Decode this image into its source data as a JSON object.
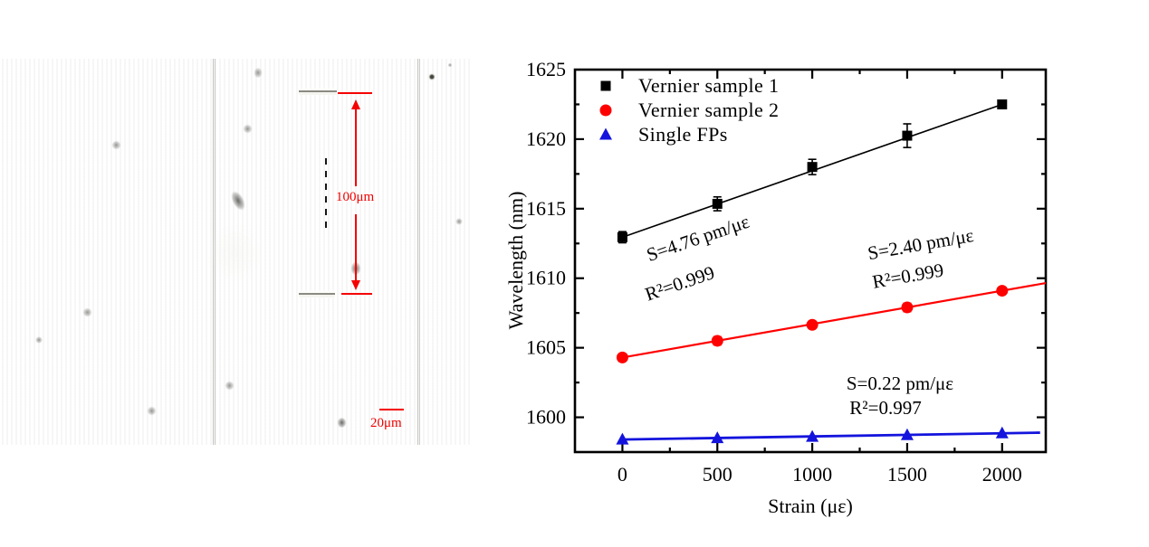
{
  "figure": {
    "background": "#ffffff",
    "description": "microscope image of inscribed fiber Fabry-Perot cavity (left) and strain response chart (right)"
  },
  "microscope": {
    "cavity_length_label": "100μm",
    "scale_bar_label": "20μm",
    "annotation_color": "#ff0000"
  },
  "chart_data": {
    "type": "scatter",
    "title": "",
    "xlabel": "Strain (με)",
    "ylabel": "Wavelength (nm)",
    "xlim": [
      -250,
      2230
    ],
    "ylim": [
      1597.5,
      1625
    ],
    "x_major_ticks": [
      0,
      500,
      1000,
      1500,
      2000
    ],
    "x_minor_step": 250,
    "y_major_ticks": [
      1600,
      1605,
      1610,
      1615,
      1620,
      1625
    ],
    "y_minor_step": 2.5,
    "grid": false,
    "legend_position": "top-left",
    "x": [
      0,
      500,
      1000,
      1500,
      2000
    ],
    "series": [
      {
        "name": "Vernier sample 1",
        "marker": "square",
        "color": "#000000",
        "line_width": 1.6,
        "values": [
          1612.95,
          1615.35,
          1618.0,
          1620.25,
          1622.5
        ],
        "errors": [
          0.4,
          0.5,
          0.55,
          0.85,
          0.15
        ],
        "fit_range": [
          0,
          2000
        ],
        "slope_label": "S=4.76 pm/με",
        "r2_label": "R²=0.999",
        "annotation_rotation_deg": -19
      },
      {
        "name": "Vernier sample 2",
        "marker": "circle",
        "color": "#ff0000",
        "line_width": 2.2,
        "values": [
          1604.3,
          1605.5,
          1606.65,
          1607.9,
          1609.1
        ],
        "errors": [
          0.15,
          0.3,
          0.2,
          0.3,
          0.12
        ],
        "fit_range": [
          0,
          2230
        ],
        "slope_label": "S=2.40 pm/με",
        "r2_label": "R²=0.999",
        "annotation_rotation_deg": -10
      },
      {
        "name": "Single FPs",
        "marker": "triangle",
        "color": "#1414dd",
        "line_width": 2.8,
        "values": [
          1598.4,
          1598.5,
          1598.6,
          1598.72,
          1598.85
        ],
        "errors": [
          0,
          0,
          0,
          0,
          0
        ],
        "fit_range": [
          0,
          2200
        ],
        "slope_label": "S=0.22 pm/με",
        "r2_label": "R²=0.997",
        "annotation_rotation_deg": 0
      }
    ]
  }
}
